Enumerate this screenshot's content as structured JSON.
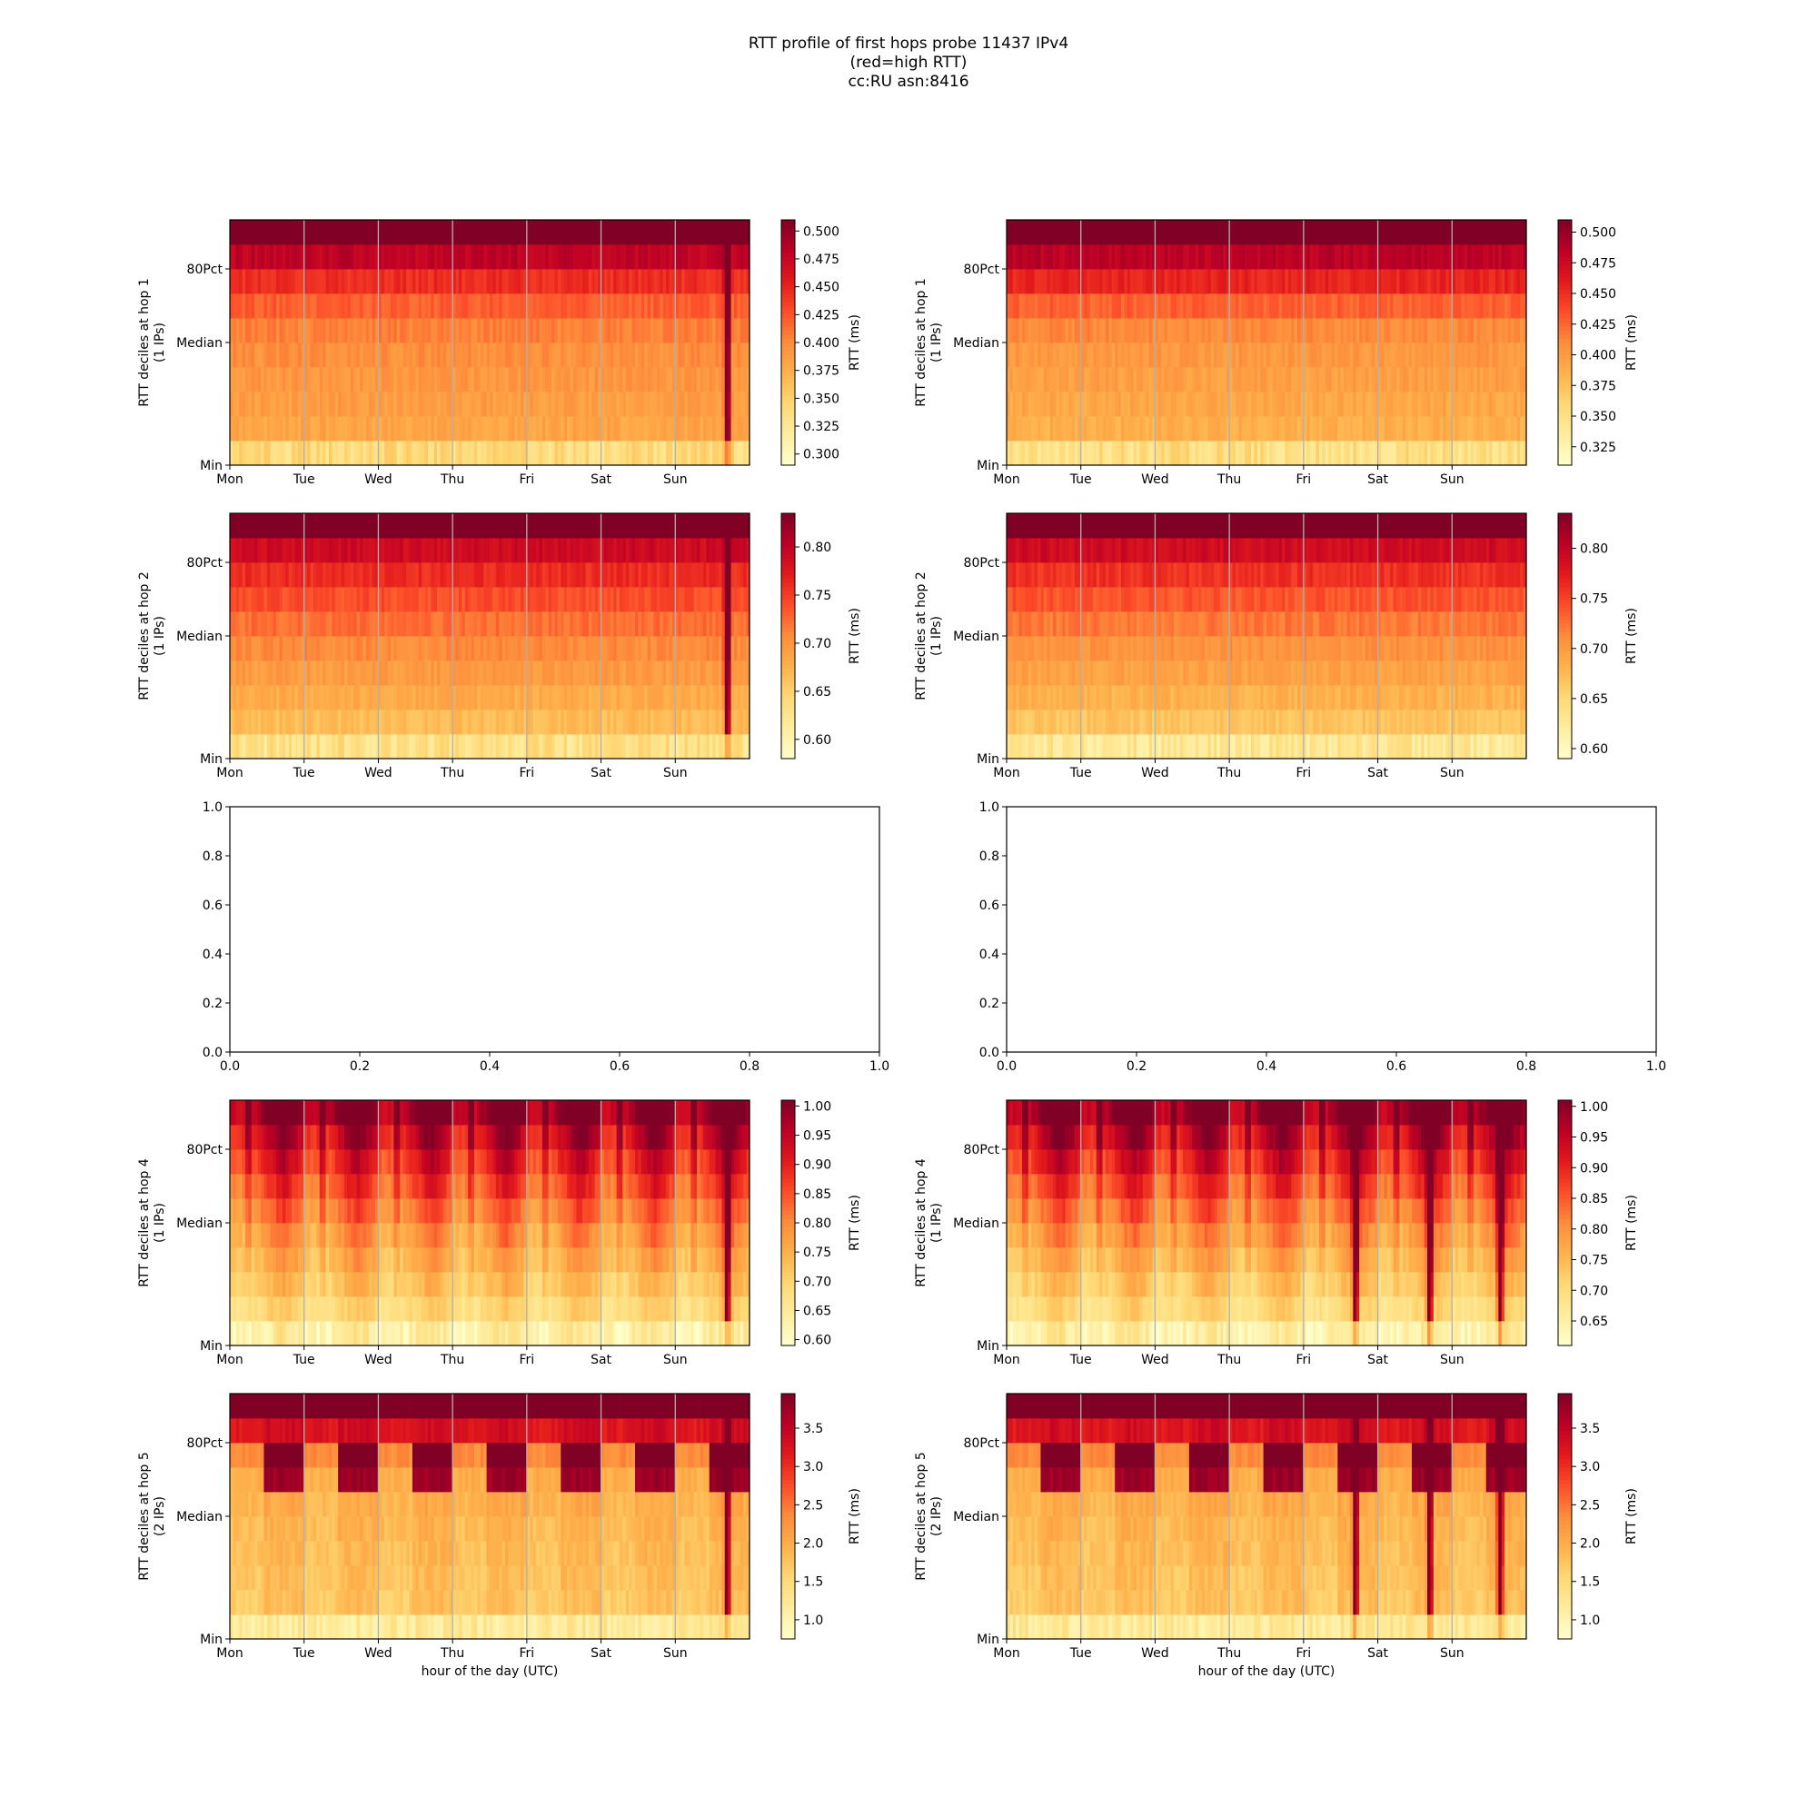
{
  "title": {
    "line1": "RTT profile of first hops probe 11437 IPv4",
    "line2": "(red=high RTT)",
    "line3": "cc:RU asn:8416"
  },
  "colors": {
    "colormap": [
      "#ffffcc",
      "#ffeda0",
      "#fed976",
      "#feb24c",
      "#fd8d3c",
      "#fc4e2a",
      "#e31a1c",
      "#bd0026",
      "#800026"
    ],
    "grid": "#b0b0b0"
  },
  "chart_data": [
    {
      "type": "heatmap",
      "panel": "hop1-left",
      "ylabel": [
        "RTT deciles at hop 1",
        "(1 IPs)"
      ],
      "xlabel": "",
      "xticks": [
        "Mon",
        "Tue",
        "Wed",
        "Thu",
        "Fri",
        "Sat",
        "Sun"
      ],
      "yticks": [
        "Min",
        "Median",
        "80Pct"
      ],
      "colorbar_label": "RTT (ms)",
      "colorbar_ticks": [
        "0.300",
        "0.325",
        "0.350",
        "0.375",
        "0.400",
        "0.425",
        "0.450",
        "0.475",
        "0.500"
      ],
      "clim": [
        0.29,
        0.51
      ],
      "deciles_ms": [
        0.3,
        0.38,
        0.385,
        0.39,
        0.395,
        0.4,
        0.41,
        0.43,
        0.46,
        0.5,
        0.54
      ],
      "pattern": "flat",
      "spikes": [
        6.7
      ]
    },
    {
      "type": "heatmap",
      "panel": "hop1-right",
      "ylabel": [
        "RTT deciles at hop 1",
        "(1 IPs)"
      ],
      "xlabel": "",
      "xticks": [
        "Mon",
        "Tue",
        "Wed",
        "Thu",
        "Fri",
        "Sat",
        "Sun"
      ],
      "yticks": [
        "Min",
        "Median",
        "80Pct"
      ],
      "colorbar_label": "RTT (ms)",
      "colorbar_ticks": [
        "0.325",
        "0.350",
        "0.375",
        "0.400",
        "0.425",
        "0.450",
        "0.475",
        "0.500"
      ],
      "clim": [
        0.31,
        0.51
      ],
      "deciles_ms": [
        0.32,
        0.385,
        0.39,
        0.395,
        0.4,
        0.405,
        0.415,
        0.44,
        0.47,
        0.5,
        0.54
      ],
      "pattern": "flat",
      "spikes": []
    },
    {
      "type": "heatmap",
      "panel": "hop2-left",
      "ylabel": [
        "RTT deciles at hop 2",
        "(1 IPs)"
      ],
      "xlabel": "",
      "xticks": [
        "Mon",
        "Tue",
        "Wed",
        "Thu",
        "Fri",
        "Sat",
        "Sun"
      ],
      "yticks": [
        "Min",
        "Median",
        "80Pct"
      ],
      "colorbar_label": "RTT (ms)",
      "colorbar_ticks": [
        "0.60",
        "0.65",
        "0.70",
        "0.75",
        "0.80"
      ],
      "clim": [
        0.58,
        0.835
      ],
      "deciles_ms": [
        0.6,
        0.66,
        0.675,
        0.69,
        0.7,
        0.715,
        0.73,
        0.75,
        0.77,
        0.81,
        0.9
      ],
      "pattern": "flat",
      "spikes": [
        6.7
      ]
    },
    {
      "type": "heatmap",
      "panel": "hop2-right",
      "ylabel": [
        "RTT deciles at hop 2",
        "(1 IPs)"
      ],
      "xlabel": "",
      "xticks": [
        "Mon",
        "Tue",
        "Wed",
        "Thu",
        "Fri",
        "Sat",
        "Sun"
      ],
      "yticks": [
        "Min",
        "Median",
        "80Pct"
      ],
      "colorbar_label": "RTT (ms)",
      "colorbar_ticks": [
        "0.60",
        "0.65",
        "0.70",
        "0.75",
        "0.80"
      ],
      "clim": [
        0.59,
        0.835
      ],
      "deciles_ms": [
        0.6,
        0.66,
        0.675,
        0.69,
        0.7,
        0.715,
        0.73,
        0.75,
        0.77,
        0.81,
        0.9
      ],
      "pattern": "flat",
      "spikes": []
    },
    {
      "type": "empty",
      "panel": "hop3-left",
      "xticks": [
        "0.0",
        "0.2",
        "0.4",
        "0.6",
        "0.8",
        "1.0"
      ],
      "yticks": [
        "0.0",
        "0.2",
        "0.4",
        "0.6",
        "0.8",
        "1.0"
      ],
      "xlim": [
        0,
        1
      ],
      "ylim": [
        0,
        1
      ]
    },
    {
      "type": "empty",
      "panel": "hop3-right",
      "xticks": [
        "0.0",
        "0.2",
        "0.4",
        "0.6",
        "0.8",
        "1.0"
      ],
      "yticks": [
        "0.0",
        "0.2",
        "0.4",
        "0.6",
        "0.8",
        "1.0"
      ],
      "xlim": [
        0,
        1
      ],
      "ylim": [
        0,
        1
      ]
    },
    {
      "type": "heatmap",
      "panel": "hop4-left",
      "ylabel": [
        "RTT deciles at hop 4",
        "(1 IPs)"
      ],
      "xlabel": "",
      "xticks": [
        "Mon",
        "Tue",
        "Wed",
        "Thu",
        "Fri",
        "Sat",
        "Sun"
      ],
      "yticks": [
        "Min",
        "Median",
        "80Pct"
      ],
      "colorbar_label": "RTT (ms)",
      "colorbar_ticks": [
        "0.60",
        "0.65",
        "0.70",
        "0.75",
        "0.80",
        "0.85",
        "0.90",
        "0.95",
        "1.00"
      ],
      "clim": [
        0.59,
        1.01
      ],
      "deciles_ms": [
        0.6,
        0.68,
        0.71,
        0.74,
        0.77,
        0.8,
        0.84,
        0.88,
        0.92,
        0.97,
        1.05
      ],
      "pattern": "diurnal",
      "spikes": [
        6.7
      ]
    },
    {
      "type": "heatmap",
      "panel": "hop4-right",
      "ylabel": [
        "RTT deciles at hop 4",
        "(1 IPs)"
      ],
      "xlabel": "",
      "xticks": [
        "Mon",
        "Tue",
        "Wed",
        "Thu",
        "Fri",
        "Sat",
        "Sun"
      ],
      "yticks": [
        "Min",
        "Median",
        "80Pct"
      ],
      "colorbar_label": "RTT (ms)",
      "colorbar_ticks": [
        "0.65",
        "0.70",
        "0.75",
        "0.80",
        "0.85",
        "0.90",
        "0.95",
        "1.00"
      ],
      "clim": [
        0.61,
        1.01
      ],
      "deciles_ms": [
        0.62,
        0.69,
        0.72,
        0.75,
        0.78,
        0.81,
        0.85,
        0.89,
        0.93,
        0.98,
        1.05
      ],
      "pattern": "diurnal",
      "spikes": [
        4.7,
        5.7,
        6.65
      ]
    },
    {
      "type": "heatmap",
      "panel": "hop5-left",
      "ylabel": [
        "RTT deciles at hop 5",
        "(2 IPs)"
      ],
      "xlabel": "hour of the day (UTC)",
      "xticks": [
        "Mon",
        "Tue",
        "Wed",
        "Thu",
        "Fri",
        "Sat",
        "Sun"
      ],
      "yticks": [
        "Min",
        "Median",
        "80Pct"
      ],
      "colorbar_label": "RTT (ms)",
      "colorbar_ticks": [
        "1.0",
        "1.5",
        "2.0",
        "2.5",
        "3.0",
        "3.5"
      ],
      "clim": [
        0.75,
        3.95
      ],
      "deciles_ms": [
        0.8,
        1.65,
        1.7,
        1.75,
        1.8,
        1.85,
        1.95,
        2.05,
        2.6,
        3.8,
        4.3
      ],
      "pattern": "steps",
      "spikes": [
        6.7
      ]
    },
    {
      "type": "heatmap",
      "panel": "hop5-right",
      "ylabel": [
        "RTT deciles at hop 5",
        "(2 IPs)"
      ],
      "xlabel": "hour of the day (UTC)",
      "xticks": [
        "Mon",
        "Tue",
        "Wed",
        "Thu",
        "Fri",
        "Sat",
        "Sun"
      ],
      "yticks": [
        "Min",
        "Median",
        "80Pct"
      ],
      "colorbar_label": "RTT (ms)",
      "colorbar_ticks": [
        "1.0",
        "1.5",
        "2.0",
        "2.5",
        "3.0",
        "3.5"
      ],
      "clim": [
        0.75,
        3.95
      ],
      "deciles_ms": [
        0.8,
        1.65,
        1.7,
        1.75,
        1.8,
        1.85,
        1.95,
        2.05,
        2.6,
        3.8,
        4.3
      ],
      "pattern": "steps",
      "spikes": [
        4.7,
        5.7,
        6.65
      ]
    }
  ]
}
